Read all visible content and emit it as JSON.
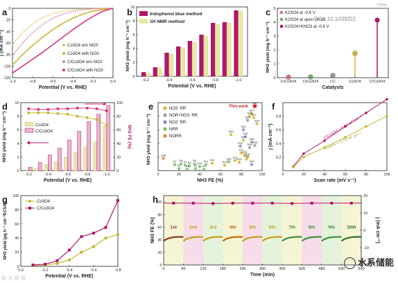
{
  "watermark_doi": "DOI: 10.1039/D2",
  "watermark_view": "View",
  "watermark_brand": "水系储能",
  "watermark_small": "新·大·颁·报",
  "panel_letters": [
    "a",
    "b",
    "c",
    "d",
    "e",
    "f",
    "g",
    "h"
  ],
  "colors": {
    "pink": "#d4377e",
    "olive": "#b7b536",
    "gold": "#d6b530",
    "magenta": "#b0176a",
    "gray": "#9b9b9b",
    "green": "#3f8f3f",
    "lightpink": "#f4cde0",
    "lightyellow": "#f1efc2",
    "lightgreen": "#dceecd",
    "red": "#cc2222"
  },
  "chart_data": [
    {
      "panel": "a",
      "type": "line",
      "xlabel": "Potential (V vs. RHE)",
      "ylabel": "j (mA cm⁻²)",
      "xlim": [
        -1.0,
        0.0
      ],
      "ylim": [
        -120,
        0
      ],
      "xticks": [
        -1.0,
        -0.8,
        -0.6,
        -0.4,
        -0.2,
        0.0
      ],
      "xtick_labels": [
        "-1.0",
        "-0.8",
        "-0.6",
        "-0.4",
        "-0.2",
        "0.0"
      ],
      "yticks": [
        -120,
        -100,
        -80,
        -60,
        -40,
        -20,
        0
      ],
      "ytick_labels": [
        "-120",
        "-100",
        "-80",
        "-60",
        "-40",
        "-20",
        "0"
      ],
      "legend": [
        "Co3O4 w/o NO3⁻",
        "Co3O4 with NO3⁻",
        "C/Co3O4 w/o NO3⁻",
        "C/Co3O4 with NO3⁻"
      ],
      "series": [
        {
          "name": "Co3O4 w/o NO3⁻",
          "style": "dotted",
          "color": "#d6c96a",
          "x": [
            -1.0,
            -0.9,
            -0.8,
            -0.7,
            -0.6,
            -0.5,
            -0.4,
            -0.3,
            -0.2,
            -0.1,
            0.0
          ],
          "y": [
            -62,
            -42,
            -27,
            -16,
            -9,
            -5,
            -2.5,
            -1,
            -0.5,
            -0.2,
            0
          ]
        },
        {
          "name": "Co3O4 with NO3⁻",
          "style": "solid",
          "color": "#c4b730",
          "x": [
            -1.0,
            -0.9,
            -0.8,
            -0.7,
            -0.6,
            -0.5,
            -0.4,
            -0.3,
            -0.2,
            -0.1,
            0.0
          ],
          "y": [
            -98,
            -80,
            -64,
            -50,
            -37,
            -26,
            -17,
            -10,
            -5,
            -2,
            0
          ]
        },
        {
          "name": "C/Co3O4 w/o NO3⁻",
          "style": "dotted",
          "color": "#e07aa8",
          "x": [
            -1.0,
            -0.9,
            -0.8,
            -0.7,
            -0.6,
            -0.5,
            -0.4,
            -0.3,
            -0.2,
            -0.1,
            0.0
          ],
          "y": [
            -82,
            -60,
            -42,
            -28,
            -17,
            -10,
            -5.5,
            -2.5,
            -1,
            -0.3,
            0
          ]
        },
        {
          "name": "C/Co3O4 with NO3⁻",
          "style": "solid",
          "color": "#d4377e",
          "x": [
            -1.0,
            -0.9,
            -0.8,
            -0.7,
            -0.6,
            -0.5,
            -0.4,
            -0.3,
            -0.2,
            -0.1,
            0.0
          ],
          "y": [
            -112,
            -100,
            -88,
            -76,
            -63,
            -50,
            -37,
            -25,
            -14,
            -5,
            0
          ]
        }
      ]
    },
    {
      "panel": "b",
      "type": "bar",
      "xlabel": "Potential (V vs. RHE)",
      "ylabel": "NH3 yield (mg h⁻¹ cm⁻²)",
      "ylim": [
        0,
        10
      ],
      "yticks": [
        0,
        2,
        4,
        6,
        8,
        10
      ],
      "categories": [
        -0.2,
        -0.3,
        -0.4,
        -0.5,
        -0.6,
        -0.7,
        -0.8,
        -0.9,
        -1.0
      ],
      "xtick_labels": [
        "-0.2",
        "-0.4",
        "-0.6",
        "-0.8",
        "-1.0"
      ],
      "xtick_values": [
        -0.2,
        -0.4,
        -0.6,
        -0.8,
        -1.0
      ],
      "legend": [
        "Indophenol blue method",
        "1H NMR method"
      ],
      "series": [
        {
          "name": "Indophenol blue method",
          "color": "#b0176a",
          "values": [
            0.6,
            1.3,
            3.4,
            4.3,
            5.1,
            6.0,
            7.7,
            7.8,
            9.5
          ]
        },
        {
          "name": "1H NMR method",
          "color": "#e8e7a6",
          "values": [
            0.5,
            1.2,
            3.2,
            4.1,
            4.9,
            5.8,
            7.5,
            7.7,
            9.4
          ]
        }
      ]
    },
    {
      "panel": "c",
      "type": "bar",
      "xlabel": "Catalysts",
      "ylabel": "NH3 yield (mg h⁻¹ cm⁻²)",
      "ylim": [
        0,
        5
      ],
      "yticks": [
        0,
        1,
        2,
        3,
        4,
        5
      ],
      "categories": [
        "C/Co3O4",
        "C/Co3O4",
        "CC",
        "Co3O4",
        "C/Co3O4"
      ],
      "legend": [
        "K2SO4 at -0.6 V",
        "K2SO4 at open circuit",
        "K2SO4+KNO3 at -0.6 V"
      ],
      "values": [
        0.04,
        0.05,
        0.16,
        1.75,
        4.15
      ],
      "colors": [
        "#e07a7a",
        "#6fb26f",
        "#9b9b9b",
        "#d6b530",
        "#b0176a"
      ]
    },
    {
      "panel": "d",
      "type": "bar",
      "xlabel": "Potential (V vs. RHE)",
      "ylabel": "NH3 yield (mg h⁻¹ cm⁻²)",
      "y2label": "NH3 FE (%)",
      "ylim": [
        0,
        10
      ],
      "y2lim": [
        0,
        100
      ],
      "yticks": [
        0,
        2,
        4,
        6,
        8,
        10
      ],
      "y2ticks": [
        0,
        20,
        40,
        60,
        80,
        100
      ],
      "categories": [
        -0.2,
        -0.3,
        -0.4,
        -0.5,
        -0.6,
        -0.7,
        -0.8,
        -0.9,
        -1.0
      ],
      "xtick_labels": [
        "-0.2",
        "-0.4",
        "-0.6",
        "-0.8",
        "-1.0"
      ],
      "xtick_values": [
        -0.2,
        -0.4,
        -0.6,
        -0.8,
        -1.0
      ],
      "legend": [
        "Co3O4",
        "C/Co3O4"
      ],
      "series": [
        {
          "name": "Co3O4",
          "color": "#e8e6b0",
          "values": [
            0.2,
            0.4,
            0.9,
            1.3,
            2.0,
            2.7,
            3.5,
            4.2,
            6.5
          ]
        },
        {
          "name": "C/Co3O4",
          "color": "#b0176a",
          "values": [
            0.5,
            1.2,
            2.3,
            3.3,
            4.5,
            5.8,
            7.2,
            8.3,
            9.6
          ]
        }
      ],
      "fe_series": [
        {
          "name": "Co3O4",
          "color": "#c4b730",
          "values": [
            85,
            85,
            85,
            84,
            83,
            80,
            78,
            75,
            67
          ]
        },
        {
          "name": "C/Co3O4",
          "color": "#d4377e",
          "values": [
            91,
            90,
            90,
            91,
            91,
            92,
            92,
            91,
            88
          ]
        }
      ]
    },
    {
      "panel": "e",
      "type": "scatter",
      "xlabel": "NH3 FE (%)",
      "ylabel": "NH3 yield (mg h⁻¹ cm⁻²)",
      "xlim": [
        0,
        100
      ],
      "ylim": [
        0,
        10
      ],
      "xticks": [
        0,
        20,
        40,
        60,
        80,
        100
      ],
      "annotation": "This work",
      "legend": [
        "NO3⁻RR",
        "NOR+NO3⁻RR",
        "NO2⁻RR",
        "NRR",
        "NORR"
      ],
      "colors": [
        "#d6b530",
        "#9b9b9b",
        "#8a86d6",
        "#7bbf6a",
        "#e08b30"
      ],
      "points": [
        {
          "label": "S37",
          "x": 93,
          "y": 9.5,
          "group": 4
        },
        {
          "label": "S27",
          "x": 90,
          "y": 8.4,
          "group": 0
        },
        {
          "label": "S26",
          "x": 88,
          "y": 8.0,
          "group": 0
        },
        {
          "label": "S22",
          "x": 92,
          "y": 7.8,
          "group": 0
        },
        {
          "label": "S23",
          "x": 86,
          "y": 7.4,
          "group": 1
        },
        {
          "label": "S24",
          "x": 95,
          "y": 6.9,
          "group": 0
        },
        {
          "label": "S32",
          "x": 82,
          "y": 6.0,
          "group": 2
        },
        {
          "label": "S39",
          "x": 70,
          "y": 5.3,
          "group": 0
        },
        {
          "label": "S35",
          "x": 84,
          "y": 5.0,
          "group": 2
        },
        {
          "label": "S21",
          "x": 82,
          "y": 4.5,
          "group": 0
        },
        {
          "label": "S36",
          "x": 90,
          "y": 4.2,
          "group": 1
        },
        {
          "label": "S33",
          "x": 93,
          "y": 3.7,
          "group": 1
        },
        {
          "label": "S31",
          "x": 79,
          "y": 3.6,
          "group": 2
        },
        {
          "label": "S34",
          "x": 88,
          "y": 3.4,
          "group": 1
        },
        {
          "label": "S17",
          "x": 80,
          "y": 2.6,
          "group": 0
        },
        {
          "label": "S18",
          "x": 83,
          "y": 2.3,
          "group": 0
        },
        {
          "label": "S16",
          "x": 86,
          "y": 2.0,
          "group": 0
        },
        {
          "label": "S19",
          "x": 85,
          "y": 1.7,
          "group": 0
        },
        {
          "label": "S14",
          "x": 74,
          "y": 1.5,
          "group": 0
        },
        {
          "label": "S15",
          "x": 78,
          "y": 1.2,
          "group": 0
        },
        {
          "label": "S28",
          "x": 90,
          "y": 0.9,
          "group": 2
        },
        {
          "label": "S12",
          "x": 52,
          "y": 1.1,
          "group": 0
        },
        {
          "label": "S13",
          "x": 64,
          "y": 0.8,
          "group": 0
        },
        {
          "label": "S30",
          "x": 68,
          "y": 1.3,
          "group": 3
        },
        {
          "label": "S38",
          "x": 5,
          "y": 1.8,
          "group": 4
        },
        {
          "label": "S1",
          "x": 16,
          "y": 0.9,
          "group": 3
        },
        {
          "label": "S6",
          "x": 22,
          "y": 1.0,
          "group": 3
        },
        {
          "label": "S7",
          "x": 26,
          "y": 0.8,
          "group": 3
        },
        {
          "label": "S8",
          "x": 30,
          "y": 0.7,
          "group": 3
        },
        {
          "label": "S9",
          "x": 35,
          "y": 1.0,
          "group": 3
        },
        {
          "label": "S10",
          "x": 40,
          "y": 0.6,
          "group": 3
        },
        {
          "label": "S11",
          "x": 46,
          "y": 0.9,
          "group": 3
        },
        {
          "label": "S2",
          "x": 20,
          "y": 0.3,
          "group": 3
        },
        {
          "label": "S3",
          "x": 28,
          "y": 0.2,
          "group": 3
        },
        {
          "label": "S4",
          "x": 36,
          "y": 0.3,
          "group": 3
        },
        {
          "label": "S5",
          "x": 44,
          "y": 0.2,
          "group": 3
        }
      ]
    },
    {
      "panel": "f",
      "type": "scatter",
      "xlabel": "Scan rate (mV s⁻¹)",
      "ylabel": "j (mA cm⁻²)",
      "xlim": [
        0,
        100
      ],
      "ylim": [
        0.0,
        1.0
      ],
      "xticks": [
        0,
        20,
        40,
        60,
        80,
        100
      ],
      "yticks": [
        0.2,
        0.4,
        0.6,
        0.8
      ],
      "ytick_labels": [
        "0.2",
        "0.4",
        "0.6",
        "0.8"
      ],
      "series": [
        {
          "name": "C/Co3O4",
          "color": "#b0176a",
          "label": "C/Co3O4 = 4.92 mF cm⁻²",
          "x": [
            10,
            20,
            40,
            60,
            80,
            100
          ],
          "y": [
            0.06,
            0.25,
            0.44,
            0.65,
            0.85,
            1.05
          ]
        },
        {
          "name": "Co3O4",
          "color": "#c4b730",
          "label": "Co3O4 = 3.74 mF cm⁻²",
          "x": [
            10,
            20,
            40,
            60,
            80,
            100
          ],
          "y": [
            0.05,
            0.2,
            0.34,
            0.49,
            0.65,
            0.8
          ]
        }
      ]
    },
    {
      "panel": "g",
      "type": "line",
      "xlabel": "Potential (V vs. RHE)",
      "ylabel": "NH3 yield (μg h⁻¹ cm⁻²ECSA)",
      "xlim": [
        0.0,
        -0.8
      ],
      "ylim": [
        0,
        100
      ],
      "xticks": [
        0.0,
        -0.2,
        -0.4,
        -0.6,
        -0.8
      ],
      "xtick_labels": [
        "0.0",
        "-0.2",
        "-0.4",
        "-0.6",
        "-0.8"
      ],
      "yticks": [
        0,
        20,
        40,
        60,
        80,
        100
      ],
      "legend": [
        "Co3O4",
        "C/Co3O4"
      ],
      "series": [
        {
          "name": "Co3O4",
          "color": "#c4b730",
          "x": [
            -0.1,
            -0.2,
            -0.3,
            -0.4,
            -0.5,
            -0.6,
            -0.7,
            -0.8
          ],
          "y": [
            1,
            2,
            4,
            9,
            20,
            28,
            40,
            45
          ]
        },
        {
          "name": "C/Co3O4",
          "color": "#b0176a",
          "x": [
            -0.1,
            -0.2,
            -0.3,
            -0.4,
            -0.5,
            -0.6,
            -0.7,
            -0.8
          ],
          "y": [
            2,
            3,
            8,
            23,
            42,
            47,
            55,
            93
          ]
        }
      ]
    },
    {
      "panel": "h",
      "type": "line",
      "xlabel": "Time (min)",
      "ylabel": "NH3 FE (%)",
      "y2label": "j (mA cm⁻²)",
      "xlim": [
        0,
        600
      ],
      "ylim": [
        0,
        110
      ],
      "y2lim": [
        -20,
        20
      ],
      "xticks": [
        0,
        60,
        120,
        180,
        240,
        300,
        360,
        420,
        480,
        540,
        600
      ],
      "yticks": [
        0,
        20,
        40,
        60,
        80,
        100
      ],
      "y2ticks": [
        -20,
        -10,
        0,
        10,
        20
      ],
      "cycles": [
        "1st",
        "2nd",
        "3rd",
        "4th",
        "5th",
        "6th",
        "7th",
        "8th",
        "9th",
        "10th"
      ],
      "fe_values": [
        98,
        98,
        97.5,
        98,
        98,
        98,
        97.5,
        98,
        98,
        98
      ],
      "cycle_colors": [
        "#f1efc2",
        "#f4cde0",
        "#dceecd",
        "#f1efc2",
        "#f4cde0",
        "#dceecd",
        "#f1efc2",
        "#f4cde0",
        "#dceecd",
        "#f1efc2"
      ],
      "label_colors": [
        "#8b3a1a",
        "#c4a020",
        "#c4a020",
        "#c46a00",
        "#c4a020",
        "#c4a020",
        "#3f8f3f",
        "#3f8f3f",
        "#3f8f3f",
        "#2f6f2f"
      ]
    }
  ]
}
